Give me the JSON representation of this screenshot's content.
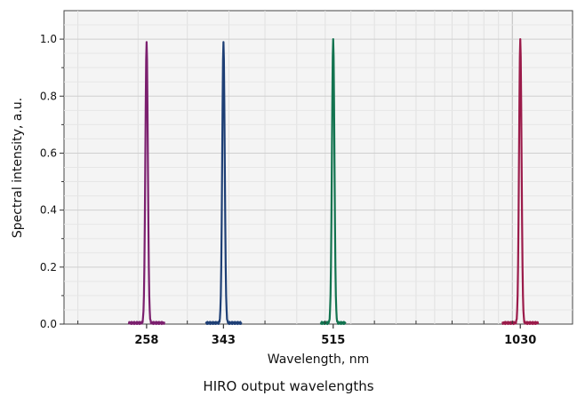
{
  "chart_data": {
    "type": "line",
    "x_scale": "log",
    "xlabel": "Wavelength, nm",
    "ylabel": "Spectral intensity, a.u.",
    "xlim": [
      190,
      1250
    ],
    "ylim": [
      0,
      1.1
    ],
    "x_ticks": [
      258,
      343,
      515,
      1030
    ],
    "y_ticks": [
      0.0,
      0.2,
      0.4,
      0.6,
      0.8,
      1.0
    ],
    "y_tick_labels": [
      "0.0",
      "0.2",
      "0.4",
      "0.6",
      "0.8",
      "1.0"
    ],
    "grid": true,
    "series": [
      {
        "center": 258,
        "peak": 0.99,
        "color": "#7b1f6e"
      },
      {
        "center": 343,
        "peak": 0.99,
        "color": "#1e3f75"
      },
      {
        "center": 515,
        "peak": 1.0,
        "color": "#12734f"
      },
      {
        "center": 1030,
        "peak": 1.0,
        "color": "#9b1b4a"
      }
    ]
  },
  "caption": "HIRO output wavelengths"
}
